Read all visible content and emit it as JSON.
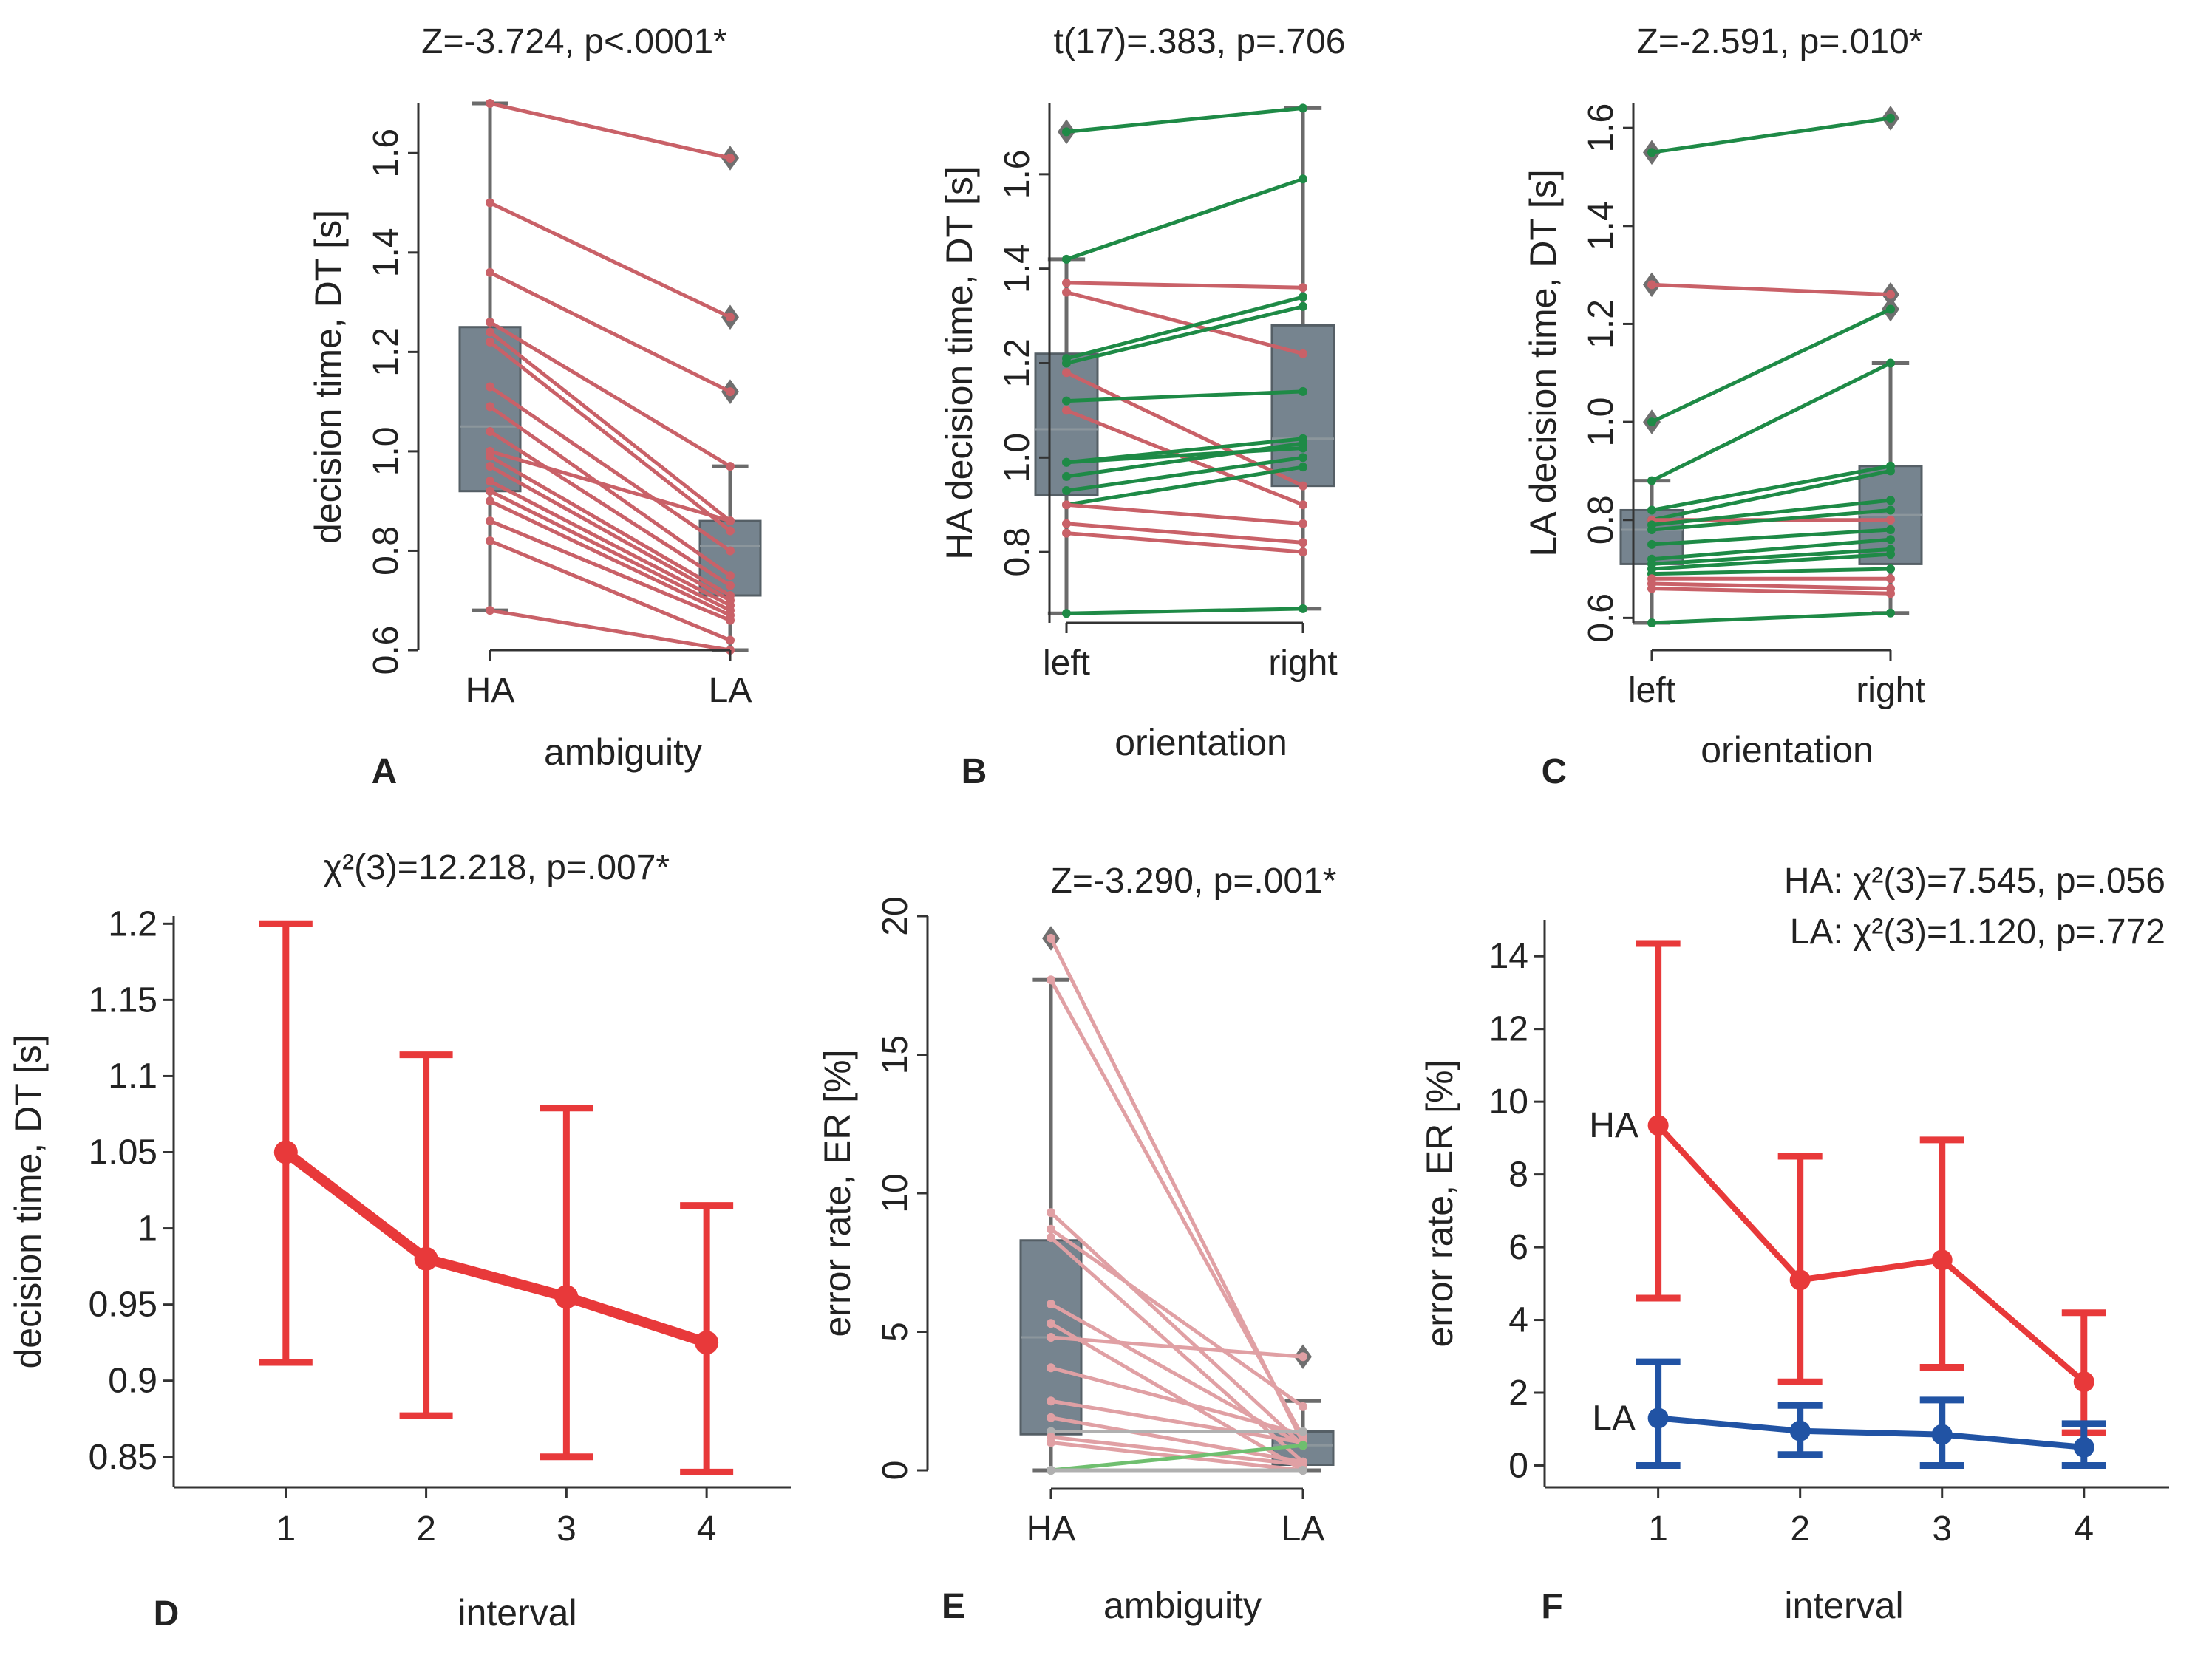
{
  "colors": {
    "decrease": "#c96168",
    "increase": "#1e8a46",
    "box": "#6a7a86",
    "box_line": "#555f66",
    "whisker": "#6b6b6b",
    "ha_line": "#e8393a",
    "la_line": "#2153a4",
    "er_decrease": "#e0a0a4",
    "er_increase": "#6fbf6f",
    "er_flat": "#b0b0b0"
  },
  "chart_data": [
    {
      "id": "A",
      "type": "box-paired",
      "panel_label": "A",
      "title": "Z=-3.724, p<.0001*",
      "xlabel": "ambiguity",
      "ylabel": "decision time, DT [s]",
      "categories": [
        "HA",
        "LA"
      ],
      "ylim": [
        0.6,
        1.7
      ],
      "yticks": [
        0.6,
        0.8,
        1.0,
        1.2,
        1.4,
        1.6
      ],
      "ytick_labels": [
        "0.6",
        "0.8",
        "1.0",
        "1.2",
        "1.4",
        "1.6"
      ],
      "boxes": [
        {
          "q1": 0.92,
          "median": 1.05,
          "q3": 1.25,
          "whisker_low": 0.68,
          "whisker_high": 1.7,
          "outliers": []
        },
        {
          "q1": 0.71,
          "median": 0.81,
          "q3": 0.86,
          "whisker_low": 0.6,
          "whisker_high": 0.97,
          "outliers": [
            1.12,
            1.27,
            1.59
          ]
        }
      ],
      "pairs": [
        [
          1.7,
          1.59
        ],
        [
          1.5,
          1.27
        ],
        [
          1.36,
          1.12
        ],
        [
          1.26,
          0.97
        ],
        [
          1.24,
          0.86
        ],
        [
          1.22,
          0.84
        ],
        [
          1.13,
          0.8
        ],
        [
          1.09,
          0.75
        ],
        [
          1.04,
          0.73
        ],
        [
          1.0,
          0.86
        ],
        [
          0.99,
          0.71
        ],
        [
          0.97,
          0.7
        ],
        [
          0.94,
          0.69
        ],
        [
          0.92,
          0.68
        ],
        [
          0.9,
          0.67
        ],
        [
          0.86,
          0.66
        ],
        [
          0.82,
          0.62
        ],
        [
          0.68,
          0.6
        ]
      ]
    },
    {
      "id": "B",
      "type": "box-paired",
      "panel_label": "B",
      "title": "t(17)=.383, p=.706",
      "xlabel": "orientation",
      "ylabel": "HA decision time, DT [s]",
      "categories": [
        "left",
        "right"
      ],
      "ylim": [
        0.65,
        1.75
      ],
      "yticks": [
        0.8,
        1.0,
        1.2,
        1.4,
        1.6
      ],
      "ytick_labels": [
        "0.8",
        "1.0",
        "1.2",
        "1.4",
        "1.6"
      ],
      "boxes": [
        {
          "q1": 0.92,
          "median": 1.06,
          "q3": 1.22,
          "whisker_low": 0.67,
          "whisker_high": 1.42,
          "outliers": [
            1.69
          ]
        },
        {
          "q1": 0.94,
          "median": 1.04,
          "q3": 1.28,
          "whisker_low": 0.68,
          "whisker_high": 1.74,
          "outliers": []
        }
      ],
      "pairs": [
        [
          1.69,
          1.74
        ],
        [
          1.42,
          1.59
        ],
        [
          1.37,
          1.36
        ],
        [
          1.35,
          1.22
        ],
        [
          1.21,
          1.34
        ],
        [
          1.2,
          1.32
        ],
        [
          1.18,
          0.94
        ],
        [
          1.12,
          1.14
        ],
        [
          1.1,
          0.9
        ],
        [
          0.99,
          1.02
        ],
        [
          0.99,
          1.04
        ],
        [
          0.96,
          1.03
        ],
        [
          0.93,
          1.0
        ],
        [
          0.9,
          0.98
        ],
        [
          0.9,
          0.86
        ],
        [
          0.86,
          0.82
        ],
        [
          0.84,
          0.8
        ],
        [
          0.67,
          0.68
        ]
      ]
    },
    {
      "id": "C",
      "type": "box-paired",
      "panel_label": "C",
      "title": "Z=-2.591, p=.010*",
      "xlabel": "orientation",
      "ylabel": "LA decision time, DT [s]",
      "categories": [
        "left",
        "right"
      ],
      "ylim": [
        0.59,
        1.65
      ],
      "yticks": [
        0.6,
        0.8,
        1.0,
        1.2,
        1.4,
        1.6
      ],
      "ytick_labels": [
        "0.6",
        "0.8",
        "1.0",
        "1.2",
        "1.4",
        "1.6"
      ],
      "boxes": [
        {
          "q1": 0.71,
          "median": 0.78,
          "q3": 0.82,
          "whisker_low": 0.59,
          "whisker_high": 0.88,
          "outliers": [
            1.0,
            1.28,
            1.55
          ]
        },
        {
          "q1": 0.71,
          "median": 0.81,
          "q3": 0.91,
          "whisker_low": 0.61,
          "whisker_high": 1.12,
          "outliers": [
            1.23,
            1.26,
            1.62
          ]
        }
      ],
      "pairs": [
        [
          1.55,
          1.62
        ],
        [
          1.28,
          1.26
        ],
        [
          1.0,
          1.23
        ],
        [
          0.88,
          1.12
        ],
        [
          0.82,
          0.91
        ],
        [
          0.8,
          0.9
        ],
        [
          0.8,
          0.8
        ],
        [
          0.79,
          0.84
        ],
        [
          0.78,
          0.82
        ],
        [
          0.75,
          0.78
        ],
        [
          0.72,
          0.76
        ],
        [
          0.71,
          0.74
        ],
        [
          0.7,
          0.73
        ],
        [
          0.69,
          0.7
        ],
        [
          0.68,
          0.68
        ],
        [
          0.67,
          0.66
        ],
        [
          0.66,
          0.65
        ],
        [
          0.59,
          0.61
        ]
      ]
    },
    {
      "id": "D",
      "type": "line-errorbar",
      "panel_label": "D",
      "title": "χ²(3)=12.218, p=.007*",
      "xlabel": "interval",
      "ylabel": "decision time, DT [s]",
      "x": [
        1,
        2,
        3,
        4
      ],
      "xlim": [
        0.2,
        4.6
      ],
      "ylim": [
        0.83,
        1.205
      ],
      "yticks": [
        0.85,
        0.9,
        0.95,
        1.0,
        1.05,
        1.1,
        1.15,
        1.2
      ],
      "ytick_labels": [
        "0.85",
        "0.9",
        "0.95",
        "1",
        "1.05",
        "1.1",
        "1.15",
        "1.2"
      ],
      "series": [
        {
          "name": "",
          "color": "#e8393a",
          "values": [
            1.05,
            0.98,
            0.955,
            0.925
          ],
          "err_low": [
            0.912,
            0.877,
            0.85,
            0.84
          ],
          "err_high": [
            1.2,
            1.114,
            1.079,
            1.015
          ]
        }
      ]
    },
    {
      "id": "E",
      "type": "box-paired",
      "panel_label": "E",
      "title": "Z=-3.290, p=.001*",
      "xlabel": "ambiguity",
      "ylabel": "error rate, ER [%]",
      "categories": [
        "HA",
        "LA"
      ],
      "ylim": [
        0,
        20
      ],
      "yticks": [
        0,
        5,
        10,
        15,
        20
      ],
      "ytick_labels": [
        "0",
        "5",
        "10",
        "15",
        "20"
      ],
      "boxes": [
        {
          "q1": 1.3,
          "median": 4.8,
          "q3": 8.3,
          "whisker_low": 0,
          "whisker_high": 17.7,
          "outliers": [
            19.2
          ]
        },
        {
          "q1": 0.2,
          "median": 0.9,
          "q3": 1.4,
          "whisker_low": 0,
          "whisker_high": 2.5,
          "outliers": [
            4.1
          ]
        }
      ],
      "pairs": [
        [
          19.2,
          1.0
        ],
        [
          17.7,
          1.2
        ],
        [
          9.3,
          0.9
        ],
        [
          8.7,
          2.3
        ],
        [
          8.4,
          0.3
        ],
        [
          6.0,
          0.9
        ],
        [
          5.3,
          0.0
        ],
        [
          4.8,
          4.1
        ],
        [
          3.7,
          1.3
        ],
        [
          2.5,
          1.0
        ],
        [
          1.9,
          0.3
        ],
        [
          1.4,
          1.4
        ],
        [
          1.2,
          0.2
        ],
        [
          1.0,
          0.0
        ],
        [
          0.0,
          0.9
        ],
        [
          0.0,
          0.0
        ],
        [
          0.0,
          0.0
        ],
        [
          0.0,
          0.0
        ]
      ]
    },
    {
      "id": "F",
      "type": "line-errorbar",
      "panel_label": "F",
      "title": "HA: χ²(3)=7.545, p=.056",
      "subtitle": "LA: χ²(3)=1.120, p=.772",
      "xlabel": "interval",
      "ylabel": "error rate, ER [%]",
      "x": [
        1,
        2,
        3,
        4
      ],
      "xlim": [
        0.2,
        4.6
      ],
      "ylim": [
        -0.6,
        15
      ],
      "yticks": [
        0,
        2,
        4,
        6,
        8,
        10,
        12,
        14
      ],
      "ytick_labels": [
        "0",
        "2",
        "4",
        "6",
        "8",
        "10",
        "12",
        "14"
      ],
      "series": [
        {
          "name": "HA",
          "color": "#e8393a",
          "values": [
            9.35,
            5.1,
            5.65,
            2.3
          ],
          "err_low": [
            4.6,
            2.3,
            2.7,
            0.9
          ],
          "err_high": [
            14.35,
            8.5,
            8.95,
            4.2
          ]
        },
        {
          "name": "LA",
          "color": "#2153a4",
          "values": [
            1.3,
            0.95,
            0.85,
            0.5
          ],
          "err_low": [
            0.0,
            0.3,
            0.0,
            0.0
          ],
          "err_high": [
            2.85,
            1.65,
            1.8,
            1.15
          ]
        }
      ]
    }
  ]
}
